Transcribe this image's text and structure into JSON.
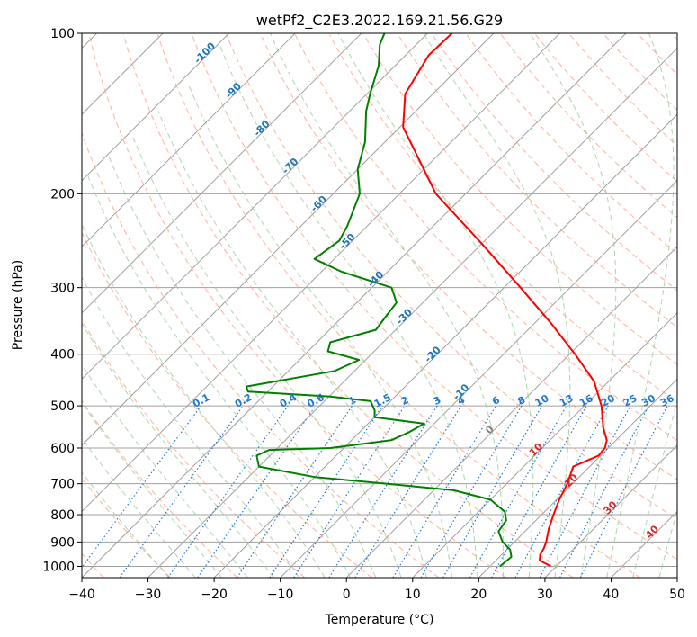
{
  "chart_data": {
    "type": "line",
    "title": "wetPf2_C2E3.2022.169.21.56.G29",
    "xlabel": "Temperature (°C)",
    "ylabel": "Pressure (hPa)",
    "xlim": [
      -40,
      50
    ],
    "ylim": [
      1050,
      100
    ],
    "x_ticks": [
      -40,
      -30,
      -20,
      -10,
      0,
      10,
      20,
      30,
      40,
      50
    ],
    "x_tick_labels": [
      "−40",
      "−30",
      "−20",
      "−10",
      "0",
      "10",
      "20",
      "30",
      "40",
      "50"
    ],
    "y_ticks": [
      1000,
      900,
      800,
      700,
      600,
      500,
      400,
      300,
      200,
      100
    ],
    "y_tick_labels": [
      "1000",
      "900",
      "800",
      "700",
      "600",
      "500",
      "400",
      "300",
      "200",
      "100"
    ],
    "skew": 45,
    "colors": {
      "temperature": "#ff0000",
      "dewpoint": "#008000",
      "dry_adiabat": "#ff9f80",
      "moist_adiabat": "#99cc99",
      "mixing_ratio": "#1f77d4",
      "isotherm_warm": "#d62728",
      "isotherm_cold": "#1f77b4",
      "isotherm_zero": "#808080",
      "grid": "#a0a0a0"
    },
    "series": [
      {
        "name": "Temperature",
        "pressure": [
          1000,
          975,
          950,
          925,
          900,
          850,
          800,
          750,
          700,
          650,
          620,
          600,
          580,
          550,
          500,
          450,
          400,
          350,
          300,
          250,
          200,
          150,
          130,
          110,
          100
        ],
        "values": [
          29.2,
          26.6,
          25.8,
          25.4,
          24.8,
          23.2,
          21.8,
          20.4,
          19.2,
          17.5,
          19.7,
          19.5,
          18.6,
          16.2,
          12.6,
          7.8,
          0.8,
          -7.5,
          -17.5,
          -29.5,
          -44.5,
          -59.5,
          -64.2,
          -66.5,
          -66.3
        ]
      },
      {
        "name": "Dewpoint",
        "pressure": [
          1000,
          960,
          930,
          900,
          860,
          820,
          790,
          750,
          720,
          700,
          680,
          650,
          620,
          605,
          600,
          580,
          560,
          540,
          525,
          510,
          490,
          480,
          470,
          460,
          430,
          410,
          395,
          380,
          360,
          340,
          320,
          300,
          280,
          265,
          245,
          230,
          200,
          180,
          160,
          140,
          130,
          115,
          105,
          100
        ],
        "values": [
          21.5,
          21.8,
          20.5,
          18.2,
          16.0,
          15.5,
          14.0,
          10.0,
          3.0,
          -8.0,
          -20.0,
          -30.0,
          -32.0,
          -31.0,
          -22.0,
          -14.0,
          -12.5,
          -11.5,
          -20.0,
          -21.0,
          -23.0,
          -30.0,
          -43.0,
          -44.0,
          -33.0,
          -31.0,
          -37.0,
          -38.0,
          -33.0,
          -33.5,
          -34.0,
          -37.0,
          -47.0,
          -53.0,
          -52.0,
          -53.0,
          -56.0,
          -60.0,
          -63.0,
          -67.5,
          -69.5,
          -72.5,
          -75.5,
          -76.5
        ]
      }
    ],
    "isotherm_labels": [
      "-100",
      "-90",
      "-80",
      "-70",
      "-60",
      "-50",
      "-40",
      "-30",
      "-20",
      "-10",
      "0",
      "10",
      "20",
      "30",
      "40"
    ],
    "mixing_ratio_labels": [
      "0.1",
      "0.2",
      "0.4",
      "0.6",
      "1",
      "1.5",
      "2",
      "3",
      "4",
      "6",
      "8",
      "10",
      "13",
      "16",
      "20",
      "25",
      "30",
      "36"
    ]
  }
}
